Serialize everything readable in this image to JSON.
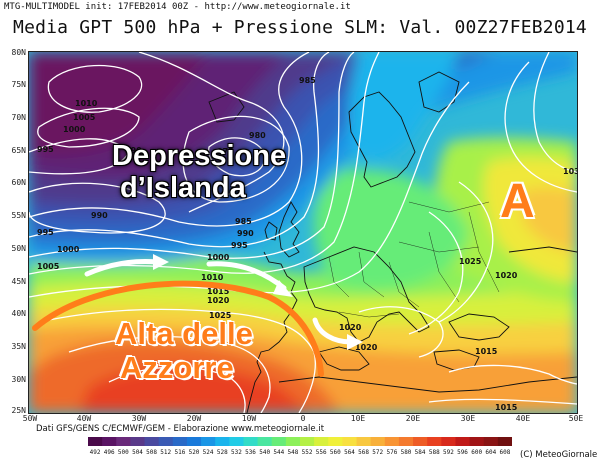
{
  "header": {
    "meta": "MTG-MULTIMODEL init: 17FEB2014 00Z - http://www.meteogiornale.it",
    "title": "Media GPT 500 hPa + Pressione SLM: Val. 00Z27FEB2014"
  },
  "axes": {
    "y_labels": [
      "80N",
      "75N",
      "70N",
      "65N",
      "60N",
      "55N",
      "50N",
      "45N",
      "40N",
      "35N",
      "30N",
      "25N"
    ],
    "x_labels": [
      "50W",
      "40W",
      "30W",
      "20W",
      "10W",
      "0",
      "10E",
      "20E",
      "30E",
      "40E",
      "50E"
    ]
  },
  "annotations": {
    "iceland_line1": "Depressione",
    "iceland_line2": "d’Islanda",
    "azores_line1": "Alta delle",
    "azores_line2": "Azzorre",
    "high": "A"
  },
  "isobar_labels": [
    {
      "text": "1010"
    },
    {
      "text": "1005"
    },
    {
      "text": "1000"
    },
    {
      "text": "995"
    },
    {
      "text": "985"
    },
    {
      "text": "980"
    },
    {
      "text": "975"
    },
    {
      "text": "990"
    },
    {
      "text": "985"
    },
    {
      "text": "990"
    },
    {
      "text": "995"
    },
    {
      "text": "995"
    },
    {
      "text": "1000"
    },
    {
      "text": "1005"
    },
    {
      "text": "1000"
    },
    {
      "text": "1010"
    },
    {
      "text": "1015"
    },
    {
      "text": "1020"
    },
    {
      "text": "1025"
    },
    {
      "text": "1020"
    },
    {
      "text": "1020"
    },
    {
      "text": "1025"
    },
    {
      "text": "1020"
    },
    {
      "text": "1015"
    },
    {
      "text": "1015"
    },
    {
      "text": "103"
    },
    {
      "text": "990"
    }
  ],
  "footer": {
    "credits": "Dati GFS/GENS C/ECMWF/GEM - Elaborazione www.meteogiornale.it",
    "copyright": "(C) MeteoGiornale"
  },
  "colorbar": {
    "labels": [
      "492",
      "496",
      "500",
      "504",
      "508",
      "512",
      "516",
      "520",
      "524",
      "528",
      "532",
      "536",
      "540",
      "544",
      "548",
      "552",
      "556",
      "560",
      "564",
      "568",
      "572",
      "576",
      "580",
      "584",
      "588",
      "592",
      "596",
      "600",
      "604",
      "608"
    ],
    "colors": [
      "#4a0a4a",
      "#5a1464",
      "#6a2a7a",
      "#5a3a8a",
      "#4a4aa0",
      "#3a5ab4",
      "#2a6ac8",
      "#1a7ada",
      "#1a96e6",
      "#1ab4ec",
      "#22cce6",
      "#32dcc8",
      "#4ae6a0",
      "#66ec78",
      "#8cf05a",
      "#b4f046",
      "#d8f03c",
      "#f0f03a",
      "#f8e040",
      "#f8c840",
      "#f8b03a",
      "#f89434",
      "#f47a2e",
      "#ee5c26",
      "#e84020",
      "#d82a1c",
      "#c01a18",
      "#a01416",
      "#8a1414",
      "#701010"
    ]
  }
}
